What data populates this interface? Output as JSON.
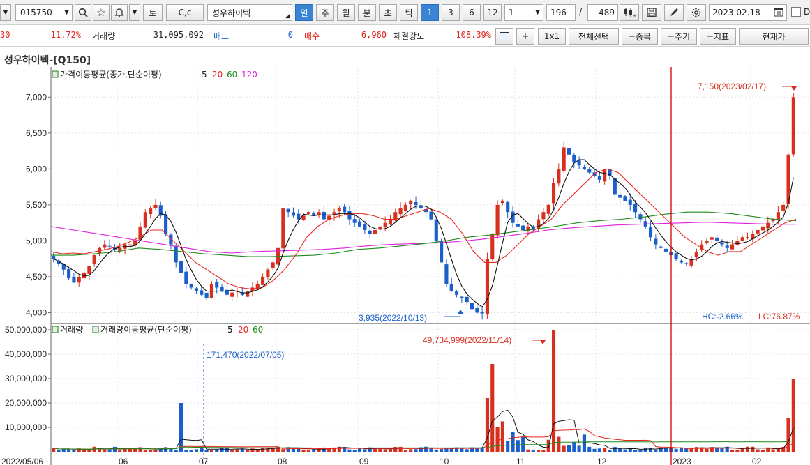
{
  "toolbar": {
    "stock_code": "015750",
    "to_label": "토",
    "cc_label": "C,c",
    "stock_name": "성우하이텍",
    "periods": [
      "일",
      "주",
      "월",
      "분",
      "초",
      "틱"
    ],
    "active_period": "일",
    "intervals": [
      "1",
      "3",
      "6",
      "12"
    ],
    "active_interval": "1",
    "interval_select": "1",
    "display_count": "196",
    "slash": "/",
    "total_count": "489",
    "date": "2023.02.18"
  },
  "quote": {
    "price_cut": "30",
    "change_pct": "11.72%",
    "volume_label": "거래량",
    "volume": "31,095,092",
    "sell_label": "매도",
    "sell_value": "0",
    "buy_label": "매수",
    "buy_value": "6,960",
    "strength_label": "체결강도",
    "strength_value": "108.39%",
    "plus_label": "+",
    "ratio_label": "1x1",
    "select_all_label": "전체선택",
    "stock_btn": "=종목",
    "period_btn": "=주기",
    "indicator_btn": "=지표",
    "current_price_btn": "현재가"
  },
  "chart_title": "성우하이텍-[Q150]",
  "colors": {
    "up": "#d8301e",
    "down": "#1a5fcc",
    "ma5": "#111111",
    "ma20": "#e8271d",
    "ma60": "#1e8a1e",
    "ma120": "#e020e0",
    "cursor": "#d40000"
  },
  "chart_data": {
    "type": "line",
    "price_panel": {
      "legend_label": "가격이동평균(종가,단순이평)",
      "legend_periods": [
        "5",
        "20",
        "60",
        "120"
      ],
      "yticks": [
        "7,000",
        "6,500",
        "6,000",
        "5,500",
        "5,000",
        "4,500",
        "4,000"
      ],
      "ylim": [
        3850,
        7420
      ],
      "high_label": "7,150(2023/02/17)",
      "low_label": "3,935(2022/10/13)",
      "hc_label": "HC:-2.66%",
      "lc_label": "LC:76.87%",
      "close_approx": [
        4750,
        4680,
        4600,
        4480,
        4420,
        4500,
        4560,
        4650,
        4800,
        4900,
        4950,
        4920,
        4880,
        4900,
        4950,
        4950,
        5000,
        5200,
        5400,
        5450,
        5500,
        5350,
        5100,
        4950,
        4700,
        4550,
        4400,
        4350,
        4300,
        4250,
        4200,
        4400,
        4350,
        4300,
        4250,
        4280,
        4300,
        4250,
        4300,
        4350,
        4400,
        4500,
        4600,
        4700,
        4900,
        5450,
        5400,
        5350,
        5300,
        5350,
        5400,
        5350,
        5400,
        5300,
        5350,
        5400,
        5450,
        5400,
        5300,
        5250,
        5200,
        5150,
        5100,
        5150,
        5200,
        5250,
        5300,
        5400,
        5450,
        5500,
        5550,
        5500,
        5450,
        5400,
        5300,
        5000,
        4700,
        4400,
        4300,
        4250,
        4200,
        4150,
        4050,
        4000,
        3990,
        4750,
        5100,
        5500,
        5550,
        5400,
        5250,
        5200,
        5150,
        5200,
        5150,
        5300,
        5400,
        5500,
        5800,
        6000,
        6300,
        6200,
        6100,
        6050,
        6000,
        5950,
        5900,
        5850,
        6000,
        5900,
        5650,
        5600,
        5550,
        5500,
        5400,
        5300,
        5200,
        5050,
        4950,
        4900,
        4850,
        4800,
        4750,
        4700,
        4680,
        4750,
        4850,
        4950,
        5000,
        5050,
        5000,
        4950,
        4900,
        4950,
        5000,
        5050,
        5050,
        5100,
        5150,
        5200,
        5250,
        5300,
        5400,
        5500,
        6200,
        7000
      ],
      "ma20_approx": [
        4850,
        4820,
        4830,
        4820,
        4850,
        4880,
        4920,
        4980,
        5050,
        5150,
        5150,
        5000,
        4850,
        4700,
        4600,
        4500,
        4400,
        4350,
        4330,
        4350,
        4450,
        4600,
        4800,
        5050,
        5200,
        5300,
        5350,
        5380,
        5380,
        5350,
        5300,
        5300,
        5350,
        5400,
        5450,
        5400,
        5300,
        5100,
        4850,
        4700,
        4700,
        4800,
        4950,
        5100,
        5200,
        5300,
        5500,
        5650,
        5800,
        5950,
        6000,
        5950,
        5800,
        5650,
        5500,
        5350,
        5200,
        5050,
        4950,
        4850,
        4800,
        4850,
        4850,
        4950,
        5050,
        5150,
        5250,
        5300
      ],
      "ma60_approx": [
        4800,
        4800,
        4820,
        4850,
        4900,
        4880,
        4850,
        4820,
        4800,
        4780,
        4780,
        4790,
        4800,
        4830,
        4880,
        4900,
        4930,
        4960,
        5000,
        5050,
        5080,
        5120,
        5160,
        5200,
        5250,
        5280,
        5300,
        5330,
        5370,
        5400,
        5400,
        5380,
        5340,
        5300,
        5280
      ],
      "ma120_approx": [
        5200,
        5150,
        5100,
        5050,
        5000,
        4950,
        4900,
        4850,
        4830,
        4850,
        4860,
        4870,
        4880,
        4900,
        4930,
        4950,
        4960,
        4970,
        4990,
        5020,
        5060,
        5100,
        5150,
        5180,
        5200,
        5220,
        5230,
        5240,
        5250,
        5260,
        5250,
        5240,
        5230,
        5230
      ]
    },
    "volume_panel": {
      "legend_label": "거래량",
      "legend_ma_label": "거래량이동평균(단순이평)",
      "legend_periods": [
        "5",
        "20",
        "60"
      ],
      "yticks": [
        "50,000,000",
        "40,000,000",
        "30,000,000",
        "20,000,000",
        "10,000,000"
      ],
      "ylim": [
        0,
        52000000
      ],
      "max_label": "49,734,999(2022/11/14)",
      "min_label": "171,470(2022/07/05)"
    },
    "xticks": [
      "2022/05/06",
      "06",
      "07",
      "08",
      "09",
      "10",
      "11",
      "12",
      "2023",
      "02"
    ]
  }
}
